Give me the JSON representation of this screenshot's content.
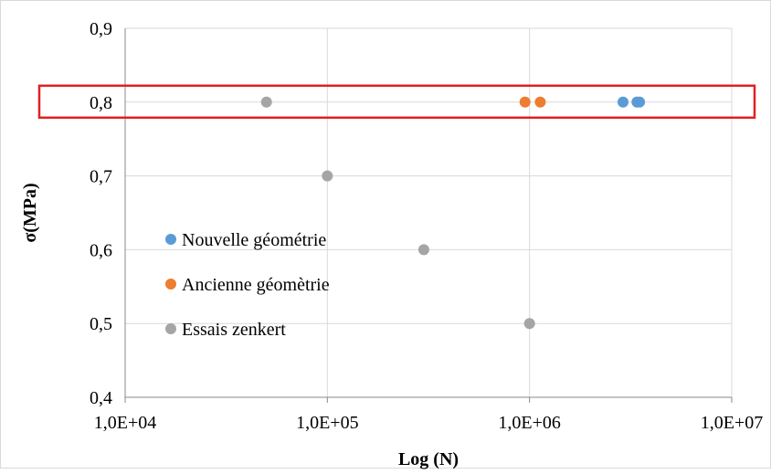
{
  "chart_data": {
    "type": "scatter",
    "title": "",
    "xlabel": "Log (N)",
    "ylabel": "σ(MPa)",
    "xscale": "log",
    "xlim": [
      10000,
      10000000
    ],
    "ylim": [
      0.4,
      0.9
    ],
    "x_tick_labels": [
      "1,0E+04",
      "1,0E+05",
      "1,0E+06",
      "1,0E+07"
    ],
    "y_tick_labels": [
      "0,4",
      "0,5",
      "0,6",
      "0,7",
      "0,8",
      "0,9"
    ],
    "grid": true,
    "legend_position": "left",
    "highlight": {
      "type": "rectangle",
      "y": 0.8,
      "color": "#e02020"
    },
    "series": [
      {
        "name": "Nouvelle géométrie",
        "color": "#5b9bd5",
        "points": [
          [
            2900000,
            0.8
          ],
          [
            3400000,
            0.8
          ],
          [
            3500000,
            0.8
          ]
        ]
      },
      {
        "name": "Ancienne géomètrie",
        "color": "#ed7d31",
        "points": [
          [
            950000,
            0.8
          ],
          [
            1130000,
            0.8
          ]
        ]
      },
      {
        "name": "Essais zenkert",
        "color": "#a5a5a5",
        "points": [
          [
            50000,
            0.8
          ],
          [
            100000,
            0.7
          ],
          [
            300000,
            0.6
          ],
          [
            1000000,
            0.5
          ]
        ]
      }
    ]
  }
}
